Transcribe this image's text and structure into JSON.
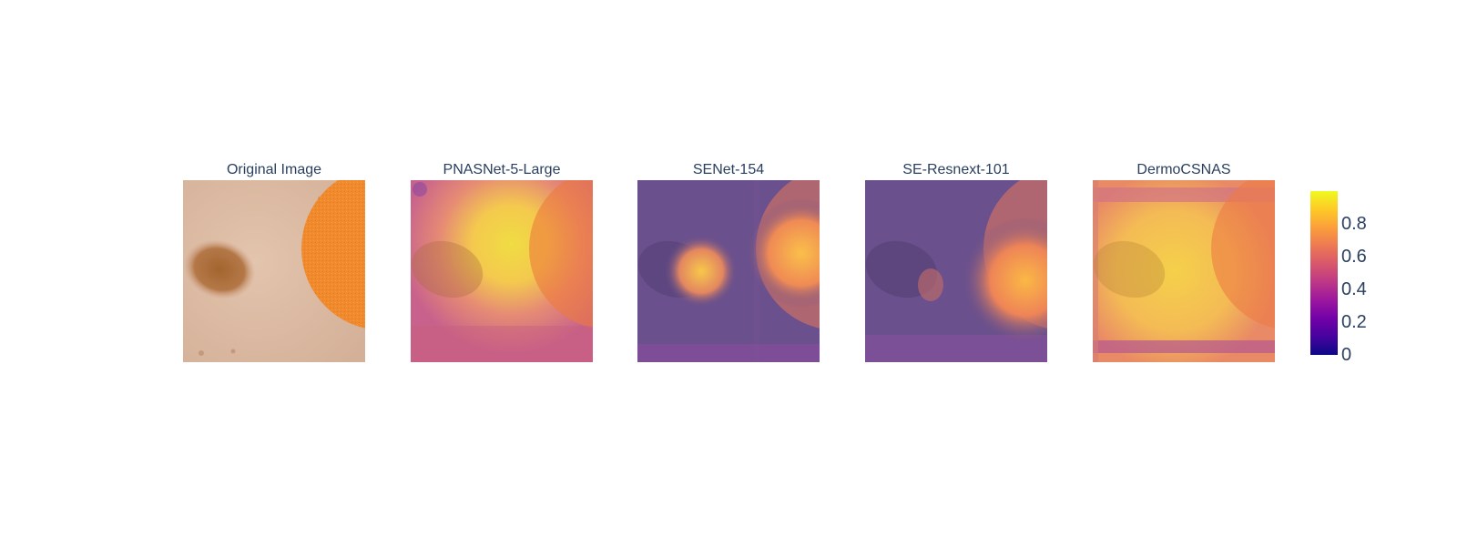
{
  "chart_data": {
    "type": "heatmap",
    "panels": [
      {
        "id": "original",
        "title": "Original Image",
        "kind": "image"
      },
      {
        "id": "pnasnet",
        "title": "PNASNet-5-Large",
        "kind": "overlay"
      },
      {
        "id": "senet",
        "title": "SENet-154",
        "kind": "overlay"
      },
      {
        "id": "seresnext",
        "title": "SE-Resnext-101",
        "kind": "overlay"
      },
      {
        "id": "dermocsnas",
        "title": "DermoCSNAS",
        "kind": "overlay"
      }
    ],
    "colorscale": {
      "name": "Plasma",
      "stops": [
        "#0d0887",
        "#46039f",
        "#7201a8",
        "#9c179e",
        "#bd3786",
        "#d8576b",
        "#ed7953",
        "#fb9f3a",
        "#fdca26",
        "#f0f921"
      ],
      "range": [
        0,
        1
      ],
      "tick_labels": [
        "0",
        "0.2",
        "0.4",
        "0.6",
        "0.8"
      ],
      "tick_values": [
        0,
        0.2,
        0.4,
        0.6,
        0.8
      ]
    },
    "grid": false,
    "legend": "right"
  },
  "colors": {
    "skin": "#dcb9a1",
    "lesion": "#a86a3c",
    "sticker": "#f08a2c",
    "text": "#2a3f5f"
  }
}
